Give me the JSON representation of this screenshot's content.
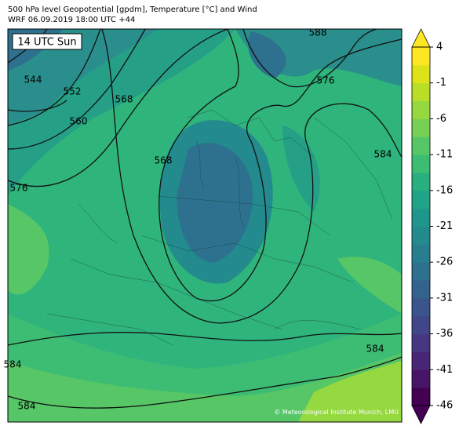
{
  "header": {
    "line1": "500 hPa level Geopotential [gpdm], Temperature [°C] and Wind",
    "line2": "WRF 06.09.2019 18:00 UTC +44"
  },
  "time_label": "14 UTC Sun",
  "credit": "© Meteorological Institute Munich, LMU",
  "contour_labels": [
    544,
    552,
    560,
    568,
    576,
    568,
    576,
    588,
    584,
    584,
    584,
    584
  ],
  "colorbar": {
    "lim": [
      -46,
      4
    ],
    "ticks": [
      4,
      -1,
      -6,
      -11,
      -16,
      -21,
      -26,
      -31,
      -36,
      -41,
      -46
    ],
    "colors": [
      "#440154",
      "#481467",
      "#482576",
      "#453781",
      "#404688",
      "#39558c",
      "#33638d",
      "#2d718e",
      "#287d8e",
      "#238a8d",
      "#1f968b",
      "#20a386",
      "#29af7f",
      "#3dbc74",
      "#56c667",
      "#75d054",
      "#95d840",
      "#bade28",
      "#dde318",
      "#fde725"
    ]
  }
}
